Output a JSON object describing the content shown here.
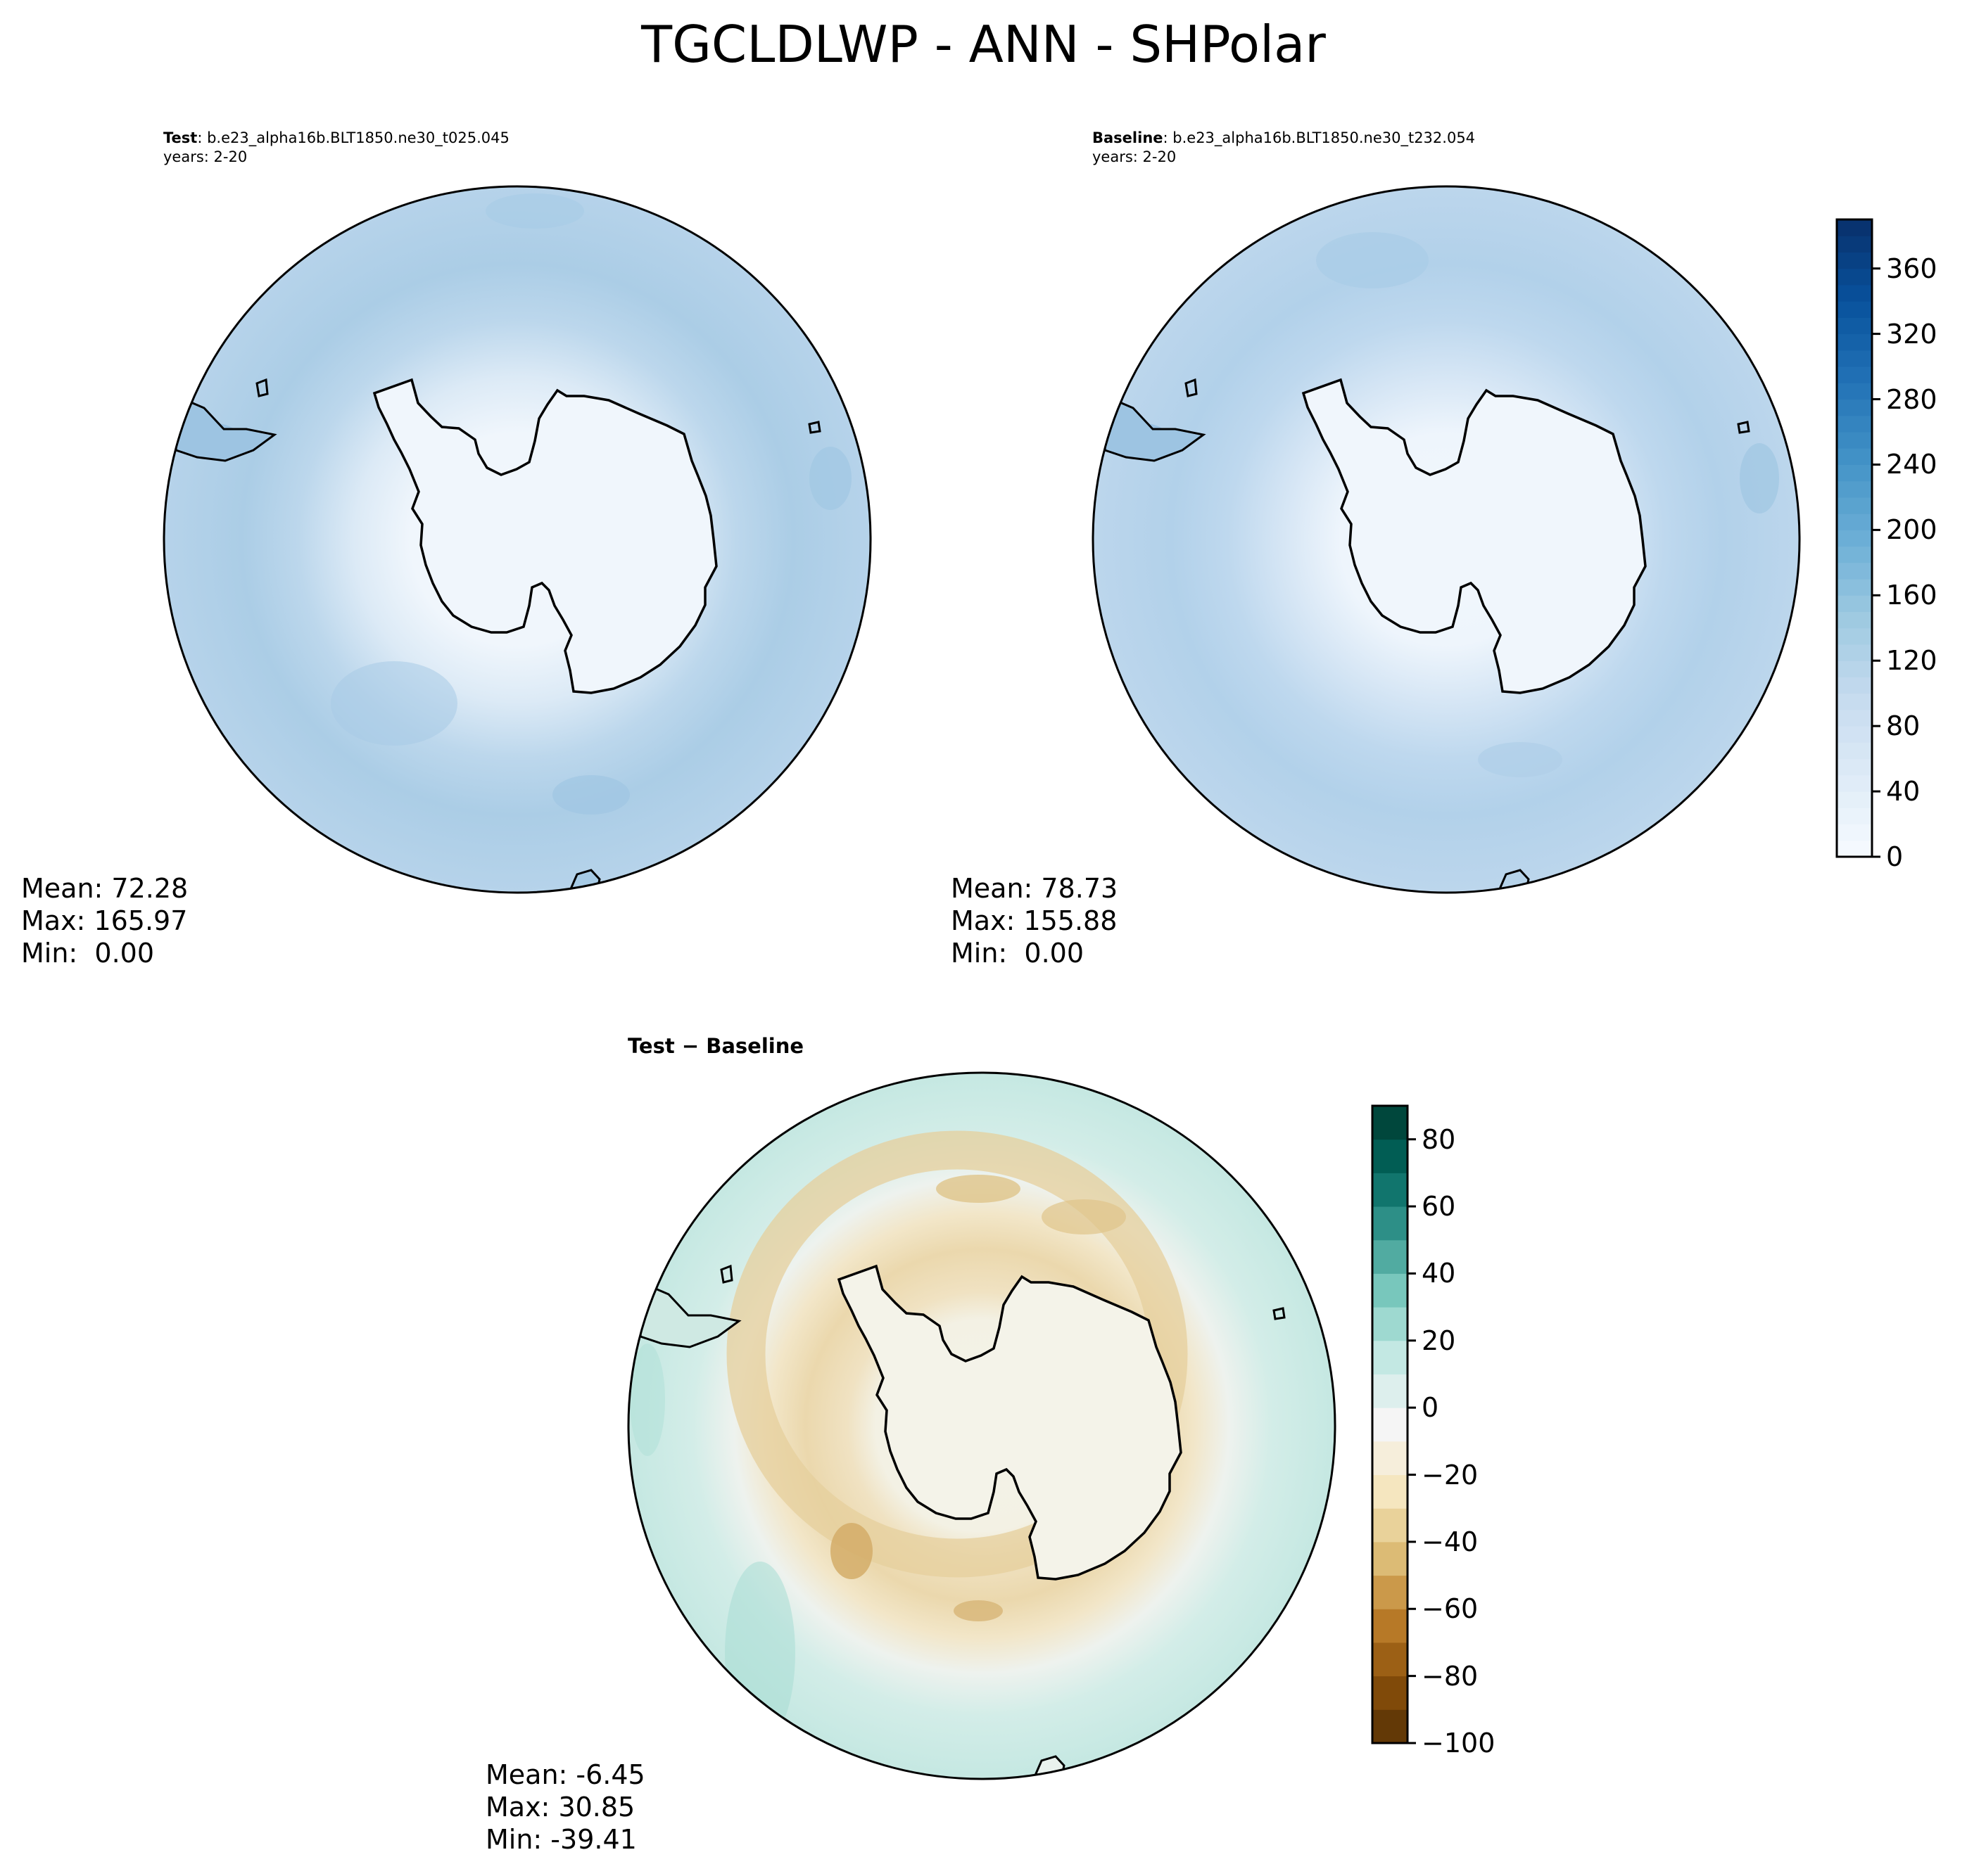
{
  "title": "TGCLDLWP - ANN - SHPolar",
  "panels": {
    "test": {
      "label_bold": "Test",
      "label_rest": ": b.e23_alpha16b.BLT1850.ne30_t025.045",
      "years": "years: 2-20",
      "stats": {
        "mean": "Mean: 72.28",
        "max": "Max: 165.97",
        "min": "Min:  0.00"
      }
    },
    "baseline": {
      "label_bold": "Baseline",
      "label_rest": ": b.e23_alpha16b.BLT1850.ne30_t232.054",
      "years": "years: 2-20",
      "stats": {
        "mean": "Mean: 78.73",
        "max": "Max: 155.88",
        "min": "Min:  0.00"
      }
    },
    "difference": {
      "label": "Test − Baseline",
      "stats": {
        "mean": "Mean: -6.45",
        "max": "Max: 30.85",
        "min": "Min: -39.41"
      }
    }
  },
  "colorbars": {
    "fields": {
      "range": [
        0,
        390
      ],
      "ticks": [
        "0",
        "40",
        "80",
        "120",
        "160",
        "200",
        "240",
        "280",
        "320",
        "360"
      ],
      "tick_values": [
        0,
        40,
        80,
        120,
        160,
        200,
        240,
        280,
        320,
        360
      ],
      "colormap": "Blues",
      "colors": [
        "#f7fbff",
        "#deebf7",
        "#c6dbef",
        "#9ecae1",
        "#6baed6",
        "#4292c6",
        "#2171b5",
        "#08519c",
        "#08306b"
      ]
    },
    "difference": {
      "range": [
        -100,
        90
      ],
      "ticks": [
        "−100",
        "−80",
        "−60",
        "−40",
        "−20",
        "0",
        "20",
        "40",
        "60",
        "80"
      ],
      "tick_values": [
        -100,
        -80,
        -60,
        -40,
        -20,
        0,
        20,
        40,
        60,
        80
      ],
      "colormap": "BrBG",
      "colors": [
        "#543005",
        "#8c510a",
        "#bf812d",
        "#dfc27d",
        "#f6e8c3",
        "#f5f5f5",
        "#c7eae5",
        "#80cdc1",
        "#35978f",
        "#01665e",
        "#003c30"
      ]
    }
  },
  "chart_data": [
    {
      "type": "heatmap",
      "title": "Test: b.e23_alpha16b.BLT1850.ne30_t025.045",
      "projection": "south polar stereographic",
      "mean": 72.28,
      "max": 165.97,
      "min": 0.0,
      "colorbar_range": [
        0,
        390
      ]
    },
    {
      "type": "heatmap",
      "title": "Baseline: b.e23_alpha16b.BLT1850.ne30_t232.054",
      "projection": "south polar stereographic",
      "mean": 78.73,
      "max": 155.88,
      "min": 0.0,
      "colorbar_range": [
        0,
        390
      ]
    },
    {
      "type": "heatmap",
      "title": "Test − Baseline",
      "projection": "south polar stereographic",
      "mean": -6.45,
      "max": 30.85,
      "min": -39.41,
      "colorbar_range": [
        -100,
        90
      ]
    }
  ]
}
